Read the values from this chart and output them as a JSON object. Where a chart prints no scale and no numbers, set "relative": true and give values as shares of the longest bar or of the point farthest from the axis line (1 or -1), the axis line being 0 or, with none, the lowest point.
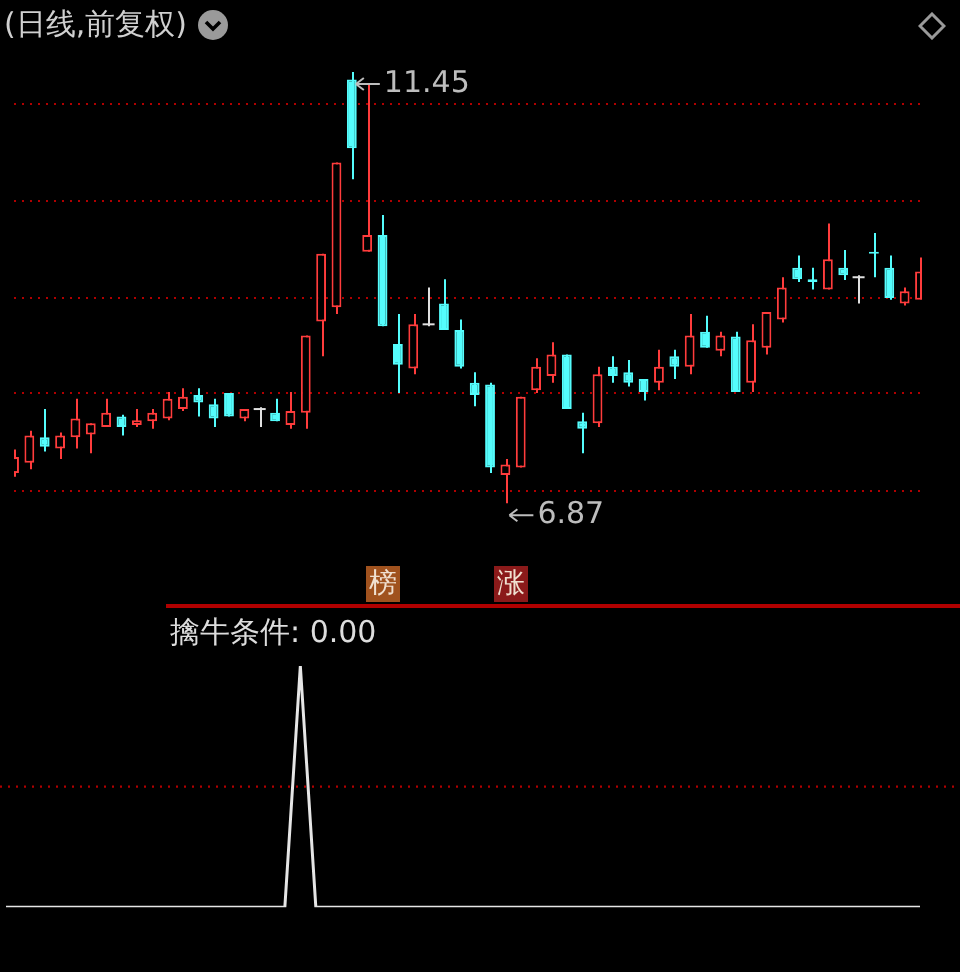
{
  "chart_data": [
    {
      "type": "candlestick",
      "title": "(日线,前复权)",
      "categories": [
        null,
        null,
        null,
        null,
        null,
        null,
        null,
        null,
        null,
        null,
        null,
        null,
        null,
        null,
        null,
        null,
        null,
        null,
        null,
        null,
        null,
        null,
        null,
        null,
        null,
        null,
        null,
        null,
        null,
        null,
        null,
        null,
        null,
        null,
        null,
        null,
        null,
        null,
        null,
        null,
        null,
        null,
        null,
        null,
        null,
        null,
        null,
        null,
        null,
        null,
        null,
        null,
        null,
        null,
        null,
        null,
        null,
        null,
        null,
        null
      ],
      "ohlc": [
        [
          7.19,
          7.44,
          7.15,
          7.36
        ],
        [
          7.3,
          7.64,
          7.23,
          7.59
        ],
        [
          7.57,
          7.87,
          7.42,
          7.47
        ],
        [
          7.45,
          7.62,
          7.34,
          7.59
        ],
        [
          7.57,
          7.98,
          7.45,
          7.77
        ],
        [
          7.6,
          7.72,
          7.4,
          7.72
        ],
        [
          7.68,
          7.98,
          7.68,
          7.83
        ],
        [
          7.79,
          7.81,
          7.59,
          7.68
        ],
        [
          7.7,
          7.87,
          7.68,
          7.75
        ],
        [
          7.74,
          7.87,
          7.66,
          7.83
        ],
        [
          7.77,
          8.05,
          7.75,
          7.98
        ],
        [
          7.87,
          8.09,
          7.85,
          8.0
        ],
        [
          8.02,
          8.09,
          7.79,
          7.94
        ],
        [
          7.92,
          7.98,
          7.68,
          7.77
        ],
        [
          8.04,
          8.04,
          7.79,
          7.79
        ],
        [
          7.77,
          7.87,
          7.74,
          7.87
        ],
        [
          7.87,
          7.89,
          7.68,
          7.87
        ],
        [
          7.83,
          7.98,
          7.74,
          7.74
        ],
        [
          7.7,
          8.05,
          7.66,
          7.85
        ],
        [
          7.83,
          8.65,
          7.66,
          8.65
        ],
        [
          8.8,
          9.52,
          8.43,
          9.52
        ],
        [
          8.95,
          10.49,
          8.88,
          10.49
        ],
        [
          11.37,
          11.45,
          10.31,
          10.64
        ],
        [
          9.54,
          11.32,
          9.54,
          9.72
        ],
        [
          9.72,
          9.93,
          8.75,
          8.75
        ],
        [
          8.56,
          8.88,
          8.04,
          8.34
        ],
        [
          8.3,
          8.88,
          8.24,
          8.77
        ],
        [
          8.77,
          9.16,
          8.75,
          8.77
        ],
        [
          8.99,
          9.25,
          8.71,
          8.71
        ],
        [
          8.71,
          8.82,
          8.3,
          8.32
        ],
        [
          8.15,
          8.26,
          7.9,
          8.02
        ],
        [
          8.13,
          8.15,
          7.19,
          7.25
        ],
        [
          7.17,
          7.34,
          6.87,
          7.28
        ],
        [
          7.25,
          8.0,
          7.25,
          8.0
        ],
        [
          8.07,
          8.41,
          8.04,
          8.32
        ],
        [
          8.22,
          8.58,
          8.15,
          8.45
        ],
        [
          8.45,
          8.45,
          7.87,
          7.87
        ],
        [
          7.74,
          7.83,
          7.4,
          7.66
        ],
        [
          7.72,
          8.32,
          7.68,
          8.24
        ],
        [
          8.32,
          8.43,
          8.15,
          8.22
        ],
        [
          8.26,
          8.39,
          8.11,
          8.15
        ],
        [
          8.19,
          8.19,
          7.96,
          8.05
        ],
        [
          8.15,
          8.5,
          8.07,
          8.32
        ],
        [
          8.43,
          8.5,
          8.19,
          8.32
        ],
        [
          8.32,
          8.88,
          8.24,
          8.65
        ],
        [
          8.69,
          8.86,
          8.52,
          8.52
        ],
        [
          8.49,
          8.69,
          8.43,
          8.65
        ],
        [
          8.64,
          8.69,
          8.05,
          8.05
        ],
        [
          8.15,
          8.77,
          8.05,
          8.6
        ],
        [
          8.52,
          8.9,
          8.45,
          8.9
        ],
        [
          8.82,
          9.27,
          8.79,
          9.16
        ],
        [
          9.37,
          9.5,
          9.22,
          9.25
        ],
        [
          9.25,
          9.37,
          9.14,
          9.22
        ],
        [
          9.14,
          9.84,
          9.14,
          9.46
        ],
        [
          9.37,
          9.56,
          9.24,
          9.29
        ],
        [
          9.27,
          9.29,
          8.99,
          9.27
        ],
        [
          9.54,
          9.74,
          9.27,
          9.52
        ],
        [
          9.37,
          9.5,
          9.03,
          9.05
        ],
        [
          8.99,
          9.16,
          8.97,
          9.12
        ],
        [
          9.03,
          9.48,
          9.03,
          9.33
        ]
      ],
      "colors": [
        "#ff3c3c",
        "#ff3c3c",
        "#54fcfc",
        "#ff3c3c",
        "#ff3c3c",
        "#ff3c3c",
        "#ff3c3c",
        "#54fcfc",
        "#ff3c3c",
        "#ff3c3c",
        "#ff3c3c",
        "#ff3c3c",
        "#54fcfc",
        "#54fcfc",
        "#54fcfc",
        "#ff3c3c",
        "#e0e0e0",
        "#54fcfc",
        "#ff3c3c",
        "#ff3c3c",
        "#ff3c3c",
        "#ff3c3c",
        "#54fcfc",
        "#ff3c3c",
        "#54fcfc",
        "#54fcfc",
        "#ff3c3c",
        "#e0e0e0",
        "#54fcfc",
        "#54fcfc",
        "#54fcfc",
        "#54fcfc",
        "#ff3c3c",
        "#ff3c3c",
        "#ff3c3c",
        "#ff3c3c",
        "#54fcfc",
        "#54fcfc",
        "#ff3c3c",
        "#54fcfc",
        "#54fcfc",
        "#54fcfc",
        "#ff3c3c",
        "#54fcfc",
        "#ff3c3c",
        "#54fcfc",
        "#ff3c3c",
        "#54fcfc",
        "#ff3c3c",
        "#ff3c3c",
        "#ff3c3c",
        "#54fcfc",
        "#54fcfc",
        "#ff3c3c",
        "#54fcfc",
        "#e0e0e0",
        "#54fcfc",
        "#54fcfc",
        "#ff3c3c",
        "#ff3c3c"
      ],
      "yticks": [
        {
          "value": 11.11,
          "label": null
        },
        {
          "value": 10.08,
          "label": null
        },
        {
          "value": 9.05,
          "label": null
        },
        {
          "value": 8.04,
          "label": null
        },
        {
          "value": 7.0,
          "label": null
        }
      ],
      "grid": "y",
      "annotations": [
        "11.45",
        "6.87",
        "榜",
        "涨"
      ]
    },
    {
      "type": "line",
      "title": "擒牛条件: 0.00",
      "categories": [
        null,
        null,
        null,
        null,
        null,
        null,
        null,
        null,
        null,
        null,
        null,
        null,
        null,
        null,
        null,
        null,
        null,
        null,
        null,
        null,
        null,
        null,
        null,
        null,
        null,
        null,
        null,
        null,
        null,
        null,
        null,
        null,
        null,
        null,
        null,
        null,
        null,
        null,
        null,
        null,
        null,
        null,
        null,
        null,
        null,
        null,
        null,
        null,
        null,
        null,
        null,
        null,
        null,
        null,
        null,
        null,
        null,
        null,
        null,
        null
      ],
      "values": [
        0,
        0,
        0,
        0,
        0,
        0,
        0,
        0,
        0,
        0,
        0,
        0,
        0,
        0,
        0,
        0,
        0,
        0,
        0,
        1,
        0,
        0,
        0,
        0,
        0,
        0,
        0,
        0,
        0,
        0,
        0,
        0,
        0,
        0,
        0,
        0,
        0,
        0,
        0,
        0,
        0,
        0,
        0,
        0,
        0,
        0,
        0,
        0,
        0,
        0,
        0,
        0,
        0,
        0,
        0,
        0,
        0,
        0,
        0,
        0
      ],
      "color": "#e6e6e6",
      "relative": true,
      "marker": "none",
      "ref_lines": [
        {
          "axis": "y",
          "value": 0.5,
          "color": "#b00000",
          "line_style": "dotted"
        }
      ]
    }
  ]
}
